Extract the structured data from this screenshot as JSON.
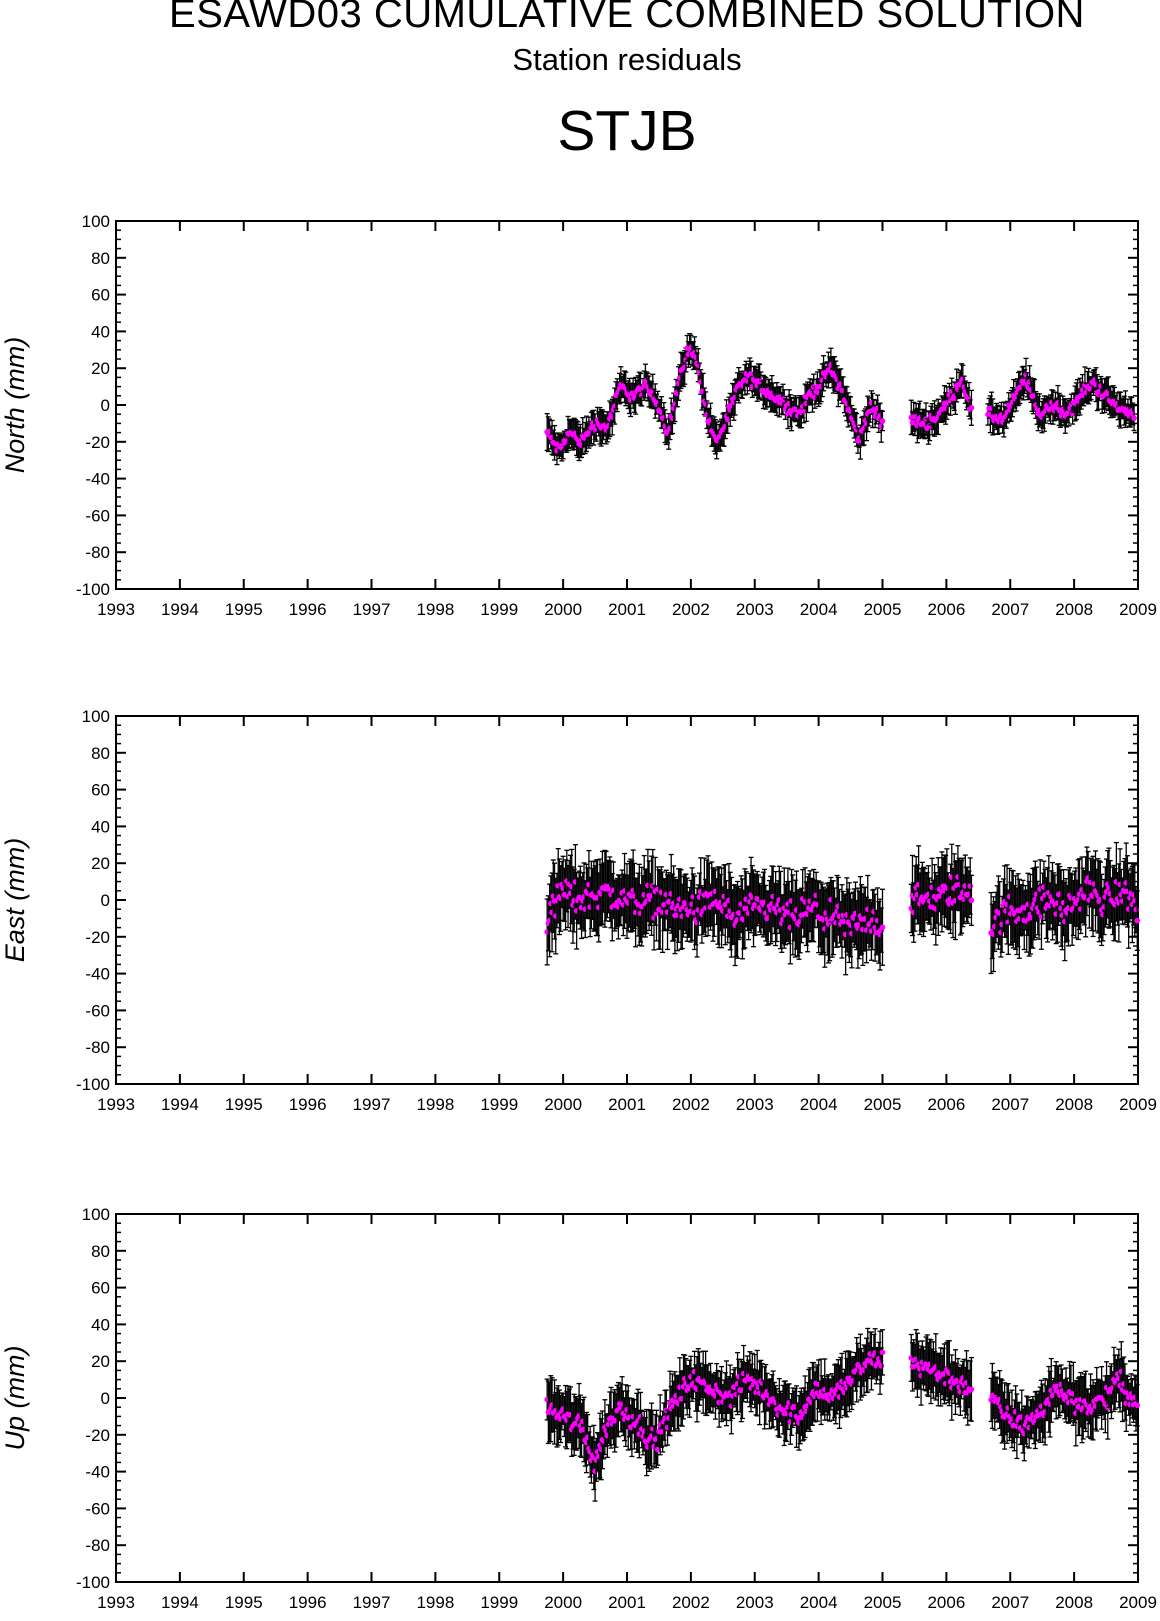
{
  "header": {
    "title": "ESAWD03 CUMULATIVE COMBINED SOLUTION",
    "subtitle": "Station residuals",
    "station": "STJB"
  },
  "colors": {
    "point": "#ff00ff",
    "errorbar": "#000000",
    "axis": "#000000"
  },
  "chart_data": [
    {
      "type": "scatter",
      "ylabel": "North (mm)",
      "xlim": [
        1993,
        2009
      ],
      "ylim": [
        -100,
        100
      ],
      "x_ticks": [
        "1993",
        "1994",
        "1995",
        "1996",
        "1997",
        "1998",
        "1999",
        "2000",
        "2001",
        "2002",
        "2003",
        "2004",
        "2005",
        "2006",
        "2007",
        "2008",
        "2009"
      ],
      "y_ticks": [
        "100",
        "80",
        "60",
        "40",
        "20",
        "0",
        "-20",
        "-40",
        "-60",
        "-80",
        "-100"
      ],
      "grid": false,
      "error_bars": true,
      "anchors": [
        [
          1999.75,
          -15
        ],
        [
          1999.95,
          -25
        ],
        [
          2000.1,
          -15
        ],
        [
          2000.3,
          -20
        ],
        [
          2000.5,
          -10
        ],
        [
          2000.7,
          -12
        ],
        [
          2000.9,
          10
        ],
        [
          2001.1,
          5
        ],
        [
          2001.3,
          10
        ],
        [
          2001.5,
          0
        ],
        [
          2001.65,
          -15
        ],
        [
          2001.8,
          10
        ],
        [
          2001.95,
          30
        ],
        [
          2002.1,
          25
        ],
        [
          2002.25,
          -5
        ],
        [
          2002.4,
          -20
        ],
        [
          2002.55,
          -10
        ],
        [
          2002.75,
          10
        ],
        [
          2002.9,
          15
        ],
        [
          2003.1,
          10
        ],
        [
          2003.3,
          5
        ],
        [
          2003.5,
          0
        ],
        [
          2003.7,
          -5
        ],
        [
          2003.85,
          5
        ],
        [
          2004.0,
          10
        ],
        [
          2004.2,
          20
        ],
        [
          2004.35,
          10
        ],
        [
          2004.5,
          -5
        ],
        [
          2004.65,
          -20
        ],
        [
          2004.8,
          0
        ],
        [
          2005.0,
          -10
        ]
      ],
      "anchors2": [
        [
          2005.45,
          -8
        ],
        [
          2005.7,
          -10
        ],
        [
          2005.9,
          -5
        ],
        [
          2006.1,
          5
        ],
        [
          2006.25,
          15
        ],
        [
          2006.4,
          -5
        ]
      ],
      "anchors3": [
        [
          2006.65,
          -5
        ],
        [
          2006.9,
          -8
        ],
        [
          2007.1,
          5
        ],
        [
          2007.25,
          15
        ],
        [
          2007.45,
          -5
        ],
        [
          2007.7,
          0
        ],
        [
          2007.9,
          -5
        ],
        [
          2008.1,
          5
        ],
        [
          2008.3,
          12
        ],
        [
          2008.5,
          5
        ],
        [
          2008.7,
          -2
        ],
        [
          2008.95,
          -5
        ]
      ],
      "noise": 5,
      "err": [
        5,
        10
      ],
      "gap_start": 2005.0,
      "gap_end": 2005.45
    },
    {
      "type": "scatter",
      "ylabel": "East (mm)",
      "xlim": [
        1993,
        2009
      ],
      "ylim": [
        -100,
        100
      ],
      "x_ticks": [
        "1993",
        "1994",
        "1995",
        "1996",
        "1997",
        "1998",
        "1999",
        "2000",
        "2001",
        "2002",
        "2003",
        "2004",
        "2005",
        "2006",
        "2007",
        "2008",
        "2009"
      ],
      "y_ticks": [
        "100",
        "80",
        "60",
        "40",
        "20",
        "0",
        "-20",
        "-40",
        "-60",
        "-80",
        "-100"
      ],
      "grid": false,
      "error_bars": true,
      "anchors": [
        [
          1999.75,
          -10
        ],
        [
          2000.0,
          5
        ],
        [
          2000.3,
          0
        ],
        [
          2000.6,
          5
        ],
        [
          2000.9,
          0
        ],
        [
          2001.2,
          0
        ],
        [
          2001.5,
          0
        ],
        [
          2001.8,
          -5
        ],
        [
          2002.1,
          -5
        ],
        [
          2002.4,
          0
        ],
        [
          2002.7,
          -10
        ],
        [
          2003.0,
          -5
        ],
        [
          2003.3,
          -5
        ],
        [
          2003.6,
          -10
        ],
        [
          2003.9,
          -5
        ],
        [
          2004.2,
          -10
        ],
        [
          2004.5,
          -15
        ],
        [
          2004.8,
          -10
        ],
        [
          2005.0,
          -15
        ]
      ],
      "anchors2": [
        [
          2005.45,
          0
        ],
        [
          2005.8,
          0
        ],
        [
          2006.1,
          5
        ],
        [
          2006.4,
          5
        ]
      ],
      "anchors3": [
        [
          2006.7,
          -15
        ],
        [
          2007.0,
          -5
        ],
        [
          2007.3,
          -5
        ],
        [
          2007.6,
          0
        ],
        [
          2007.9,
          -5
        ],
        [
          2008.2,
          5
        ],
        [
          2008.5,
          0
        ],
        [
          2008.8,
          5
        ],
        [
          2009.0,
          -5
        ]
      ],
      "noise": 12,
      "err": [
        12,
        22
      ],
      "gap_start": 2005.0,
      "gap_end": 2005.45
    },
    {
      "type": "scatter",
      "ylabel": "Up (mm)",
      "xlim": [
        1993,
        2009
      ],
      "ylim": [
        -100,
        100
      ],
      "x_ticks": [
        "1993",
        "1994",
        "1995",
        "1996",
        "1997",
        "1998",
        "1999",
        "2000",
        "2001",
        "2002",
        "2003",
        "2004",
        "2005",
        "2006",
        "2007",
        "2008",
        "2009"
      ],
      "y_ticks": [
        "100",
        "80",
        "60",
        "40",
        "20",
        "0",
        "-20",
        "-40",
        "-60",
        "-80",
        "-100"
      ],
      "grid": false,
      "error_bars": true,
      "anchors": [
        [
          1999.75,
          -5
        ],
        [
          2000.0,
          -10
        ],
        [
          2000.3,
          -15
        ],
        [
          2000.5,
          -35
        ],
        [
          2000.7,
          -15
        ],
        [
          2000.9,
          -5
        ],
        [
          2001.2,
          -15
        ],
        [
          2001.45,
          -25
        ],
        [
          2001.7,
          -5
        ],
        [
          2002.0,
          10
        ],
        [
          2002.3,
          5
        ],
        [
          2002.6,
          0
        ],
        [
          2002.9,
          10
        ],
        [
          2003.1,
          5
        ],
        [
          2003.4,
          -5
        ],
        [
          2003.7,
          -10
        ],
        [
          2003.95,
          5
        ],
        [
          2004.2,
          0
        ],
        [
          2004.5,
          10
        ],
        [
          2004.8,
          20
        ],
        [
          2005.0,
          20
        ]
      ],
      "anchors2": [
        [
          2005.45,
          20
        ],
        [
          2005.8,
          15
        ],
        [
          2006.1,
          10
        ],
        [
          2006.4,
          5
        ]
      ],
      "anchors3": [
        [
          2006.7,
          0
        ],
        [
          2006.95,
          -10
        ],
        [
          2007.2,
          -15
        ],
        [
          2007.45,
          -10
        ],
        [
          2007.7,
          5
        ],
        [
          2007.95,
          0
        ],
        [
          2008.2,
          -5
        ],
        [
          2008.5,
          0
        ],
        [
          2008.7,
          10
        ],
        [
          2009.0,
          -5
        ]
      ],
      "noise": 8,
      "err": [
        8,
        18
      ],
      "gap_start": 2005.0,
      "gap_end": 2005.45
    }
  ]
}
